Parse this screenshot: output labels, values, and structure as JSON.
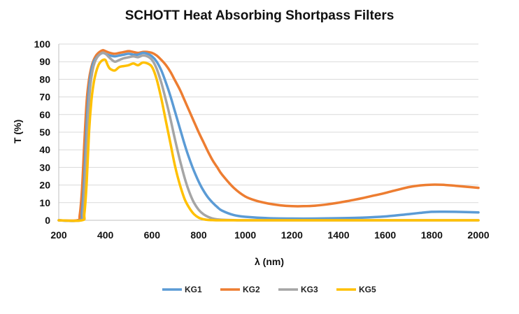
{
  "chart_data": {
    "type": "line",
    "title": "SCHOTT Heat Absorbing Shortpass Filters",
    "xlabel": "λ (nm)",
    "ylabel": "T (%)",
    "xlim": [
      200,
      2000
    ],
    "ylim": [
      0,
      100
    ],
    "xticks": [
      "200",
      "400",
      "600",
      "800",
      "1000",
      "1200",
      "1400",
      "1600",
      "1800",
      "2000"
    ],
    "yticks": [
      "0",
      "10",
      "20",
      "30",
      "40",
      "50",
      "60",
      "70",
      "80",
      "90",
      "100"
    ],
    "grid": "horizontal",
    "legend_position": "bottom",
    "series": [
      {
        "name": "KG1",
        "color": "#5B9BD5",
        "x": [
          200,
          290,
          300,
          310,
          320,
          330,
          340,
          350,
          360,
          370,
          380,
          390,
          400,
          420,
          440,
          460,
          480,
          500,
          520,
          540,
          560,
          580,
          600,
          620,
          640,
          660,
          680,
          700,
          720,
          740,
          760,
          780,
          800,
          820,
          840,
          860,
          880,
          900,
          950,
          1000,
          1100,
          1200,
          1300,
          1400,
          1500,
          1600,
          1700,
          1750,
          1800,
          1850,
          1900,
          2000
        ],
        "y": [
          0,
          0,
          5,
          25,
          55,
          75,
          85,
          90,
          92,
          93.5,
          94.5,
          95,
          94.5,
          93.5,
          93,
          93.5,
          94,
          94.5,
          94,
          94,
          95,
          94.5,
          93,
          90,
          85,
          78,
          70,
          61,
          52,
          43,
          35,
          28,
          22,
          17,
          13,
          10,
          7.5,
          5.5,
          3,
          2,
          1.2,
          1,
          1,
          1.2,
          1.5,
          2.2,
          3.5,
          4.2,
          4.8,
          4.9,
          4.8,
          4.5
        ]
      },
      {
        "name": "KG2",
        "color": "#ED7D31",
        "x": [
          200,
          280,
          290,
          300,
          310,
          320,
          330,
          340,
          350,
          360,
          370,
          380,
          390,
          400,
          420,
          440,
          460,
          480,
          500,
          520,
          540,
          560,
          580,
          600,
          620,
          640,
          660,
          680,
          700,
          720,
          740,
          760,
          780,
          800,
          820,
          840,
          860,
          880,
          900,
          950,
          1000,
          1050,
          1100,
          1150,
          1200,
          1250,
          1300,
          1350,
          1400,
          1450,
          1500,
          1550,
          1600,
          1650,
          1700,
          1750,
          1800,
          1850,
          1900,
          1950,
          2000
        ],
        "y": [
          0,
          0,
          3,
          18,
          45,
          68,
          80,
          87,
          91,
          93.5,
          95,
          96,
          96.5,
          96,
          95,
          94.5,
          95,
          95.5,
          96,
          95.5,
          95,
          95.5,
          95.5,
          95,
          93.5,
          91,
          88,
          84,
          79,
          74,
          68,
          62,
          56,
          50,
          44.5,
          39,
          34,
          30,
          26,
          18.5,
          13.5,
          11,
          9.5,
          8.5,
          8,
          8,
          8.3,
          9,
          10,
          11.2,
          12.5,
          14,
          15.5,
          17.2,
          18.8,
          19.8,
          20.2,
          20.1,
          19.6,
          19,
          18.4
        ]
      },
      {
        "name": "KG3",
        "color": "#A5A5A5",
        "x": [
          200,
          295,
          305,
          315,
          325,
          335,
          345,
          355,
          365,
          375,
          385,
          395,
          405,
          420,
          440,
          460,
          480,
          500,
          520,
          540,
          560,
          580,
          600,
          620,
          640,
          660,
          680,
          700,
          720,
          740,
          760,
          780,
          800,
          820,
          840,
          860,
          880,
          900,
          950,
          1000,
          1200,
          1500,
          1800,
          2000
        ],
        "y": [
          0,
          0,
          5,
          28,
          58,
          76,
          85,
          90,
          92.5,
          94,
          95,
          95,
          94,
          92,
          90,
          91,
          92,
          92.5,
          93,
          92.5,
          93.5,
          93,
          91,
          86,
          78,
          68,
          57,
          45,
          34,
          24,
          16,
          10,
          6,
          3.5,
          2,
          1,
          0.5,
          0.3,
          0.1,
          0,
          0,
          0,
          0,
          0
        ]
      },
      {
        "name": "KG5",
        "color": "#FFC000",
        "x": [
          200,
          300,
          310,
          320,
          330,
          340,
          350,
          360,
          370,
          380,
          390,
          400,
          410,
          420,
          440,
          460,
          480,
          500,
          520,
          540,
          560,
          580,
          600,
          620,
          640,
          660,
          680,
          700,
          720,
          740,
          760,
          780,
          800,
          820,
          840,
          860,
          880,
          900,
          1000,
          1200,
          1500,
          1800,
          2000
        ],
        "y": [
          0,
          0,
          4,
          22,
          50,
          68,
          78,
          84,
          88,
          90,
          91,
          91,
          88,
          86,
          85,
          87,
          87.5,
          88,
          89,
          88,
          89.5,
          89,
          87,
          80,
          69,
          56,
          43,
          30,
          20,
          12,
          7,
          3.5,
          1.5,
          0.6,
          0.2,
          0.1,
          0,
          0,
          0,
          0,
          0,
          0,
          0
        ]
      }
    ]
  }
}
